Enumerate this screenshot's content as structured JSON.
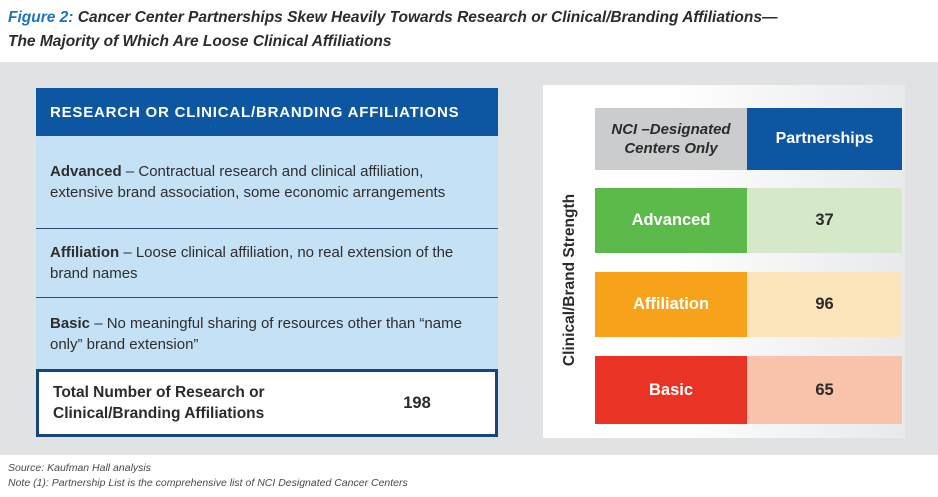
{
  "figure": {
    "label": "Figure 2:",
    "title_line1": "Cancer Center Partnerships Skew Heavily Towards Research or Clinical/Branding Affiliations—",
    "title_line2": "The Majority of Which Are Loose Clinical Affiliations"
  },
  "definitions_panel": {
    "header": "RESEARCH OR CLINICAL/BRANDING AFFILIATIONS",
    "items": [
      {
        "term": "Advanced",
        "description": "– Contractual research and clinical affiliation, extensive brand association, some economic arrangements"
      },
      {
        "term": "Affiliation",
        "description": "– Loose clinical affiliation, no real extension of the brand names"
      },
      {
        "term": "Basic",
        "description": "– No meaningful sharing of resources other than “name only” brand extension”"
      }
    ],
    "total": {
      "label": "Total Number of Research or Clinical/Branding Affiliations",
      "value": "198"
    }
  },
  "chart": {
    "y_axis_label": "Clinical/Brand Strength",
    "col1_header": "NCI –Designated Centers Only",
    "col2_header": "Partnerships",
    "rows": [
      {
        "label": "Advanced",
        "value": "37"
      },
      {
        "label": "Affiliation",
        "value": "96"
      },
      {
        "label": "Basic",
        "value": "65"
      }
    ]
  },
  "chart_data": {
    "type": "table",
    "title": "Figure 2: Cancer Center Partnerships Skew Heavily Towards Research or Clinical/Branding Affiliations—The Majority of Which Are Loose Clinical Affiliations",
    "columns": [
      "NCI –Designated Centers Only",
      "Partnerships"
    ],
    "categories": [
      "Advanced",
      "Affiliation",
      "Basic"
    ],
    "values": [
      37,
      96,
      65
    ],
    "ylabel": "Clinical/Brand Strength",
    "total_label": "Total Number of Research or Clinical/Branding Affiliations",
    "total_value": 198,
    "legend_position": "none",
    "grid": false
  },
  "footer": {
    "source": "Source: Kaufman Hall analysis",
    "note": "Note (1): Partnership List is the comprehensive list of NCI Designated Cancer Centers"
  },
  "colors": {
    "figure_label_blue": "#1b75bc",
    "dark_blue": "#0d57a2",
    "light_blue": "#c5e1f5",
    "navy_border": "#16477c",
    "gray_background": "#e1e2e4",
    "header_gray_cell": "#cbcccd",
    "advanced_green": "#5cba4a",
    "advanced_green_light": "#d5e9c8",
    "affiliation_orange": "#f7a21b",
    "affiliation_orange_light": "#fce5bb",
    "basic_red": "#e93325",
    "basic_red_light": "#f9c3ab"
  }
}
